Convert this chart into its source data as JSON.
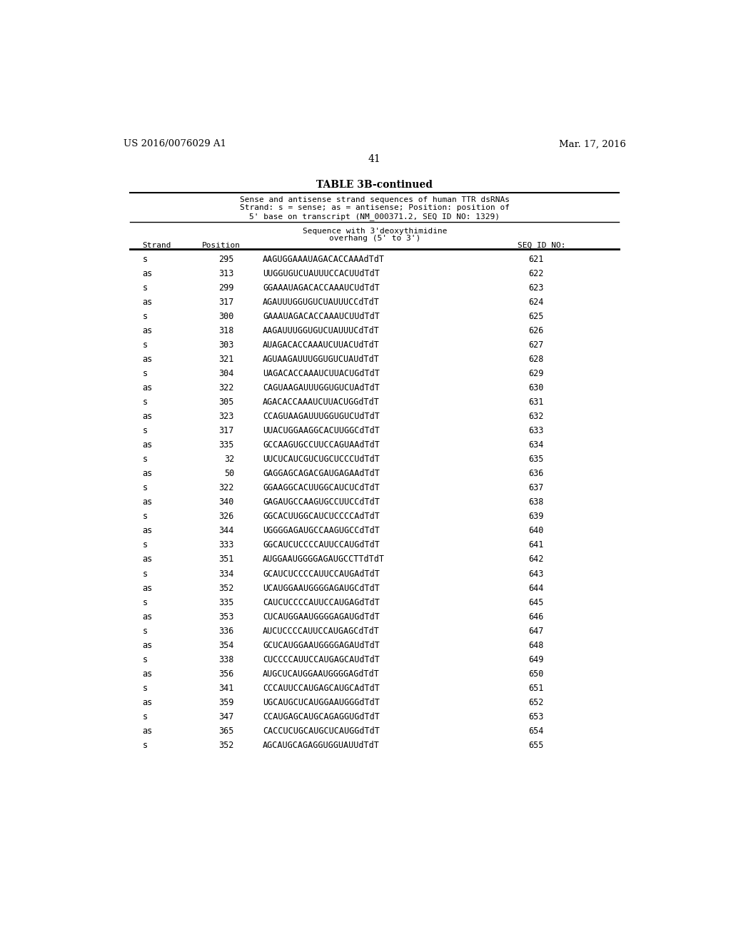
{
  "page_number": "41",
  "patent_left": "US 2016/0076029 A1",
  "patent_right": "Mar. 17, 2016",
  "table_title": "TABLE 3B-continued",
  "caption_lines": [
    "Sense and antisense strand sequences of human TTR dsRNAs",
    "Strand: s = sense; as = antisense; Position: position of",
    "5' base on transcript (NM_000371.2, SEQ ID NO: 1329)"
  ],
  "rows": [
    [
      "s",
      "295",
      "AAGUGGAAAUAGACACCAAAdTdT",
      "621"
    ],
    [
      "as",
      "313",
      "UUGGUGUCUAUUUCCACUUdTdT",
      "622"
    ],
    [
      "s",
      "299",
      "GGAAAUAGACACCAAAUCUdTdT",
      "623"
    ],
    [
      "as",
      "317",
      "AGAUUUGGUGUCUAUUUCCdTdT",
      "624"
    ],
    [
      "s",
      "300",
      "GAAAUAGACACCAAAUCUUdTdT",
      "625"
    ],
    [
      "as",
      "318",
      "AAGAUUUGGUGUCUAUUUCdTdT",
      "626"
    ],
    [
      "s",
      "303",
      "AUAGACACCAAAUCUUACUdTdT",
      "627"
    ],
    [
      "as",
      "321",
      "AGUAAGAUUUGGUGUCUAUdTdT",
      "628"
    ],
    [
      "s",
      "304",
      "UAGACACCAAAUCUUACUGdTdT",
      "629"
    ],
    [
      "as",
      "322",
      "CAGUAAGAUUUGGUGUCUAdTdT",
      "630"
    ],
    [
      "s",
      "305",
      "AGACACCAAAUCUUACUGGdTdT",
      "631"
    ],
    [
      "as",
      "323",
      "CCAGUAAGAUUUGGUGUCUdTdT",
      "632"
    ],
    [
      "s",
      "317",
      "UUACUGGAAGGCACUUGGCdTdT",
      "633"
    ],
    [
      "as",
      "335",
      "GCCAAGUGCCUUCCAGUAAdTdT",
      "634"
    ],
    [
      "s",
      "32",
      "UUCUCAUCGUCUGCUCCCUdTdT",
      "635"
    ],
    [
      "as",
      "50",
      "GAGGAGCAGACGAUGAGAAdTdT",
      "636"
    ],
    [
      "s",
      "322",
      "GGAAGGCACUUGGCAUCUCdTdT",
      "637"
    ],
    [
      "as",
      "340",
      "GAGAUGCCAAGUGCCUUCCdTdT",
      "638"
    ],
    [
      "s",
      "326",
      "GGCACUUGGCAUCUCCCCAdTdT",
      "639"
    ],
    [
      "as",
      "344",
      "UGGGGAGAUGCCAAGUGCCdTdT",
      "640"
    ],
    [
      "s",
      "333",
      "GGCAUCUCCCCAUUCCAUGdTdT",
      "641"
    ],
    [
      "as",
      "351",
      "AUGGAAUGGGGAGAUGCCTTdTdT",
      "642"
    ],
    [
      "s",
      "334",
      "GCAUCUCCCCAUUCCAUGAdTdT",
      "643"
    ],
    [
      "as",
      "352",
      "UCAUGGAAUGGGGAGAUGCdTdT",
      "644"
    ],
    [
      "s",
      "335",
      "CAUCUCCCCAUUCCAUGAGdTdT",
      "645"
    ],
    [
      "as",
      "353",
      "CUCAUGGAAUGGGGAGAUGdTdT",
      "646"
    ],
    [
      "s",
      "336",
      "AUCUCCCCAUUCCAUGAGCdTdT",
      "647"
    ],
    [
      "as",
      "354",
      "GCUCAUGGAAUGGGGAGAUdTdT",
      "648"
    ],
    [
      "s",
      "338",
      "CUCCCCAUUCCAUGAGCAUdTdT",
      "649"
    ],
    [
      "as",
      "356",
      "AUGCUCAUGGAAUGGGGAGdTdT",
      "650"
    ],
    [
      "s",
      "341",
      "CCCAUUCCAUGAGCAUGCAdTdT",
      "651"
    ],
    [
      "as",
      "359",
      "UGCAUGCUCAUGGAAUGGGdTdT",
      "652"
    ],
    [
      "s",
      "347",
      "CCAUGAGCAUGCAGAGGUGdTdT",
      "653"
    ],
    [
      "as",
      "365",
      "CACCUCUGCAUGCUCAUGGdTdT",
      "654"
    ],
    [
      "s",
      "352",
      "AGCAUGCAGAGGUGGUAUUdTdT",
      "655"
    ]
  ],
  "bg_color": "#ffffff",
  "text_color": "#000000"
}
